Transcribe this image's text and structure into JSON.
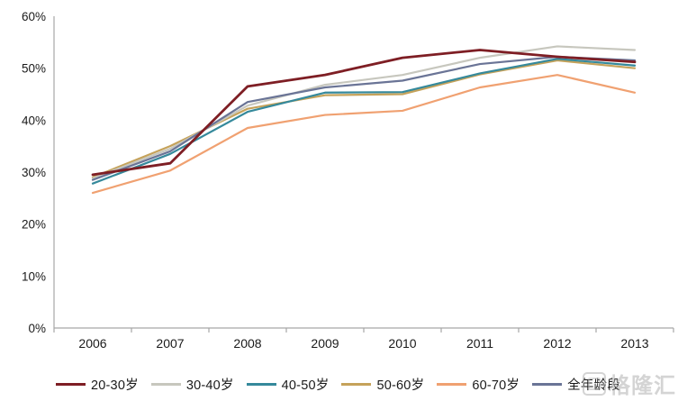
{
  "watermark": {
    "text": "格隆汇"
  },
  "chart_data": {
    "type": "line",
    "title": "",
    "xlabel": "",
    "ylabel": "",
    "x": [
      "2006",
      "2007",
      "2008",
      "2009",
      "2010",
      "2011",
      "2012",
      "2013"
    ],
    "series": [
      {
        "name": "20-30岁",
        "color": "#7E1E24",
        "values": [
          29.5,
          31.7,
          46.5,
          48.7,
          52.0,
          53.5,
          52.2,
          51.2
        ]
      },
      {
        "name": "30-40岁",
        "color": "#C7C7BE",
        "values": [
          28.8,
          34.5,
          42.8,
          46.8,
          48.7,
          52.0,
          54.2,
          53.5
        ]
      },
      {
        "name": "40-50岁",
        "color": "#35899B",
        "values": [
          27.8,
          33.5,
          41.6,
          45.3,
          45.4,
          49.0,
          51.8,
          50.5
        ]
      },
      {
        "name": "50-60岁",
        "color": "#C5A25A",
        "values": [
          29.0,
          35.0,
          42.2,
          44.8,
          45.0,
          48.8,
          51.5,
          50.0
        ]
      },
      {
        "name": "60-70岁",
        "color": "#F0A171",
        "values": [
          26.0,
          30.3,
          38.5,
          41.0,
          41.8,
          46.3,
          48.7,
          45.3
        ]
      },
      {
        "name": "全年龄段",
        "color": "#6A7496",
        "values": [
          28.5,
          34.0,
          43.5,
          46.3,
          47.6,
          50.8,
          52.2,
          51.5
        ]
      }
    ],
    "ylim": [
      0,
      60
    ],
    "y_tick_step": 10,
    "y_tick_labels": [
      "0%",
      "10%",
      "20%",
      "30%",
      "40%",
      "50%",
      "60%"
    ],
    "grid": false,
    "legend_position": "bottom",
    "axis_color": "#A6A6A6",
    "text_color": "#1A1A1A"
  }
}
